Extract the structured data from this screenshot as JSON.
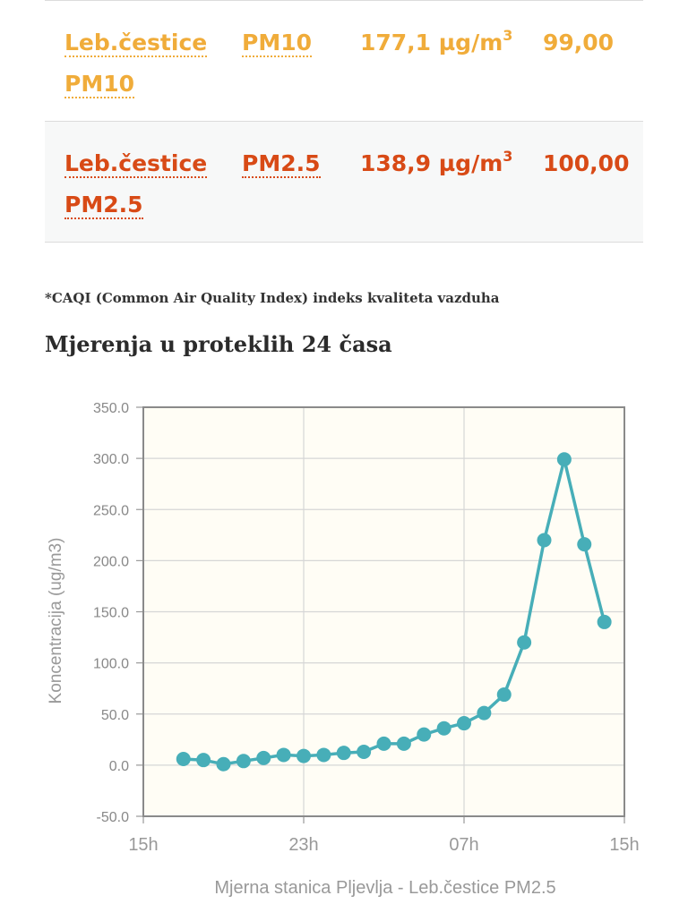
{
  "table": {
    "rows": [
      {
        "name": "Leb.čestice PM10",
        "code": "PM10",
        "value": "177,1 µg/m",
        "unit_sup": "3",
        "index": "99,00",
        "color": "#f0ac3a"
      },
      {
        "name": "Leb.čestice PM2.5",
        "code": "PM2.5",
        "value": "138,9 µg/m",
        "unit_sup": "3",
        "index": "100,00",
        "color": "#d84a16"
      }
    ]
  },
  "note": "*CAQI (Common Air Quality Index) indeks kvaliteta vazduha",
  "heading": "Mjerenja u proteklih 24 časa",
  "chart_data": {
    "type": "line",
    "title": "",
    "xlabel": "Mjerna stanica Pljevlja - Leb.čestice PM2.5",
    "ylabel": "Koncentracija (ug/m3)",
    "ylim": [
      -50,
      350
    ],
    "yticks": [
      "-50.0",
      "0.0",
      "50.0",
      "100.0",
      "150.0",
      "200.0",
      "250.0",
      "300.0",
      "350.0"
    ],
    "xticks": [
      "15h",
      "23h",
      "07h",
      "15h"
    ],
    "grid": true,
    "series": [
      {
        "name": "",
        "color": "#47aeb8",
        "x": [
          17,
          18,
          19,
          20,
          21,
          22,
          23,
          24,
          25,
          26,
          27,
          28,
          29,
          30,
          31,
          32,
          33,
          34,
          35,
          36,
          37,
          38,
          39,
          40,
          41
        ],
        "y": [
          6,
          5,
          1,
          4,
          7,
          10,
          9,
          10,
          12,
          13,
          21,
          21,
          30,
          36,
          41,
          51,
          69,
          120,
          220,
          299,
          216,
          140,
          null,
          null,
          null
        ]
      }
    ]
  }
}
